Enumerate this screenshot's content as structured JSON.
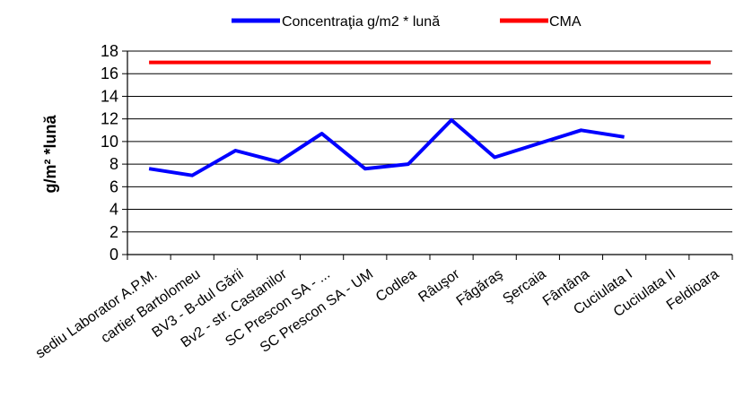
{
  "chart_data": {
    "type": "line",
    "title": "",
    "xlabel": "",
    "ylabel": "g/m² *lună",
    "ylim": [
      0,
      18
    ],
    "yticks": [
      "0",
      "2",
      "4",
      "6",
      "8",
      "10",
      "12",
      "14",
      "16",
      "18"
    ],
    "grid": true,
    "legend_position": "top",
    "categories": [
      "sediu Laborator A.P.M.",
      "cartier Bartolomeu",
      "BV3 - B-dul Gării",
      "Bv2 - str. Castanilor",
      "SC Prescon SA - ...",
      "SC Prescon SA - UM",
      "Codlea",
      "Râuşor",
      "Făgăraş",
      "Şercaia",
      "Fântâna",
      "Cuciulata I",
      "Cuciulata II",
      "Feldioara"
    ],
    "series": [
      {
        "name": "Concentraţia g/m2 * lună",
        "color": "#0000FF",
        "values": [
          7.6,
          7.0,
          9.2,
          8.2,
          10.7,
          7.6,
          8.0,
          11.9,
          8.6,
          9.8,
          11.0,
          10.4,
          null,
          null
        ]
      },
      {
        "name": "CMA",
        "color": "#FF0000",
        "values": [
          17,
          17,
          17,
          17,
          17,
          17,
          17,
          17,
          17,
          17,
          17,
          17,
          17,
          17
        ]
      }
    ]
  }
}
